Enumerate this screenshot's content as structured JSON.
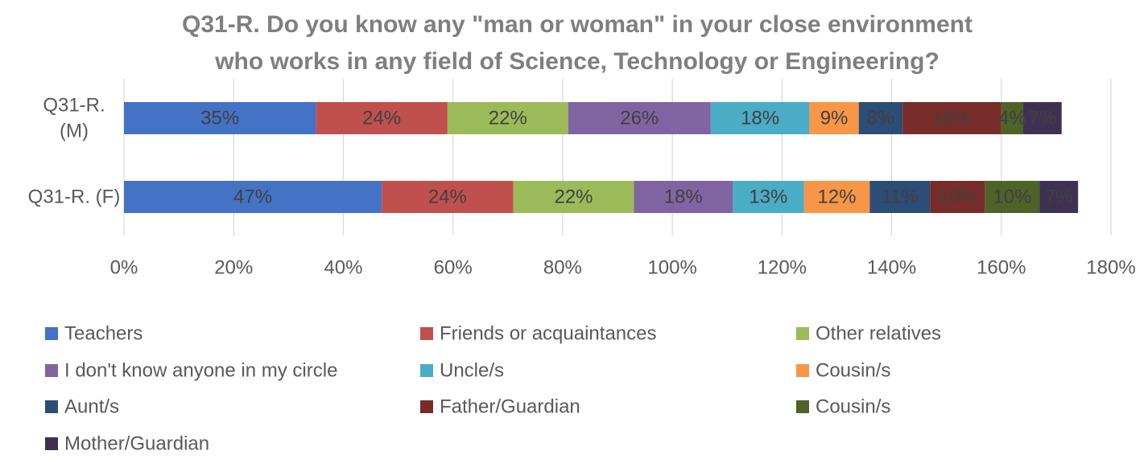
{
  "chart_data": {
    "type": "bar",
    "orientation": "horizontal",
    "stacked": true,
    "title": "Q31-R. Do you know any \"man or woman\" in your close environment who works in any field of Science, Technology or Engineering?",
    "title_lines": [
      "Q31-R. Do you know any \"man or woman\" in your close environment",
      "who works in any field of Science, Technology or Engineering?"
    ],
    "categories": [
      "Q31-R. (M)",
      "Q31-R. (F)"
    ],
    "category_label_lines": [
      [
        "Q31-R.",
        "(M)"
      ],
      [
        "Q31-R. (F)"
      ]
    ],
    "xlim": [
      0,
      180
    ],
    "x_ticks": [
      0,
      20,
      40,
      60,
      80,
      100,
      120,
      140,
      160,
      180
    ],
    "x_tick_labels": [
      "0%",
      "20%",
      "40%",
      "60%",
      "80%",
      "100%",
      "120%",
      "140%",
      "160%",
      "180%"
    ],
    "grid": "vertical",
    "legend_position": "bottom",
    "series": [
      {
        "name": "Teachers",
        "color": "#4472c4",
        "values": [
          35,
          47
        ],
        "labels": [
          "35%",
          "47%"
        ]
      },
      {
        "name": "Friends or acquaintances",
        "color": "#c0504d",
        "values": [
          24,
          24
        ],
        "labels": [
          "24%",
          "24%"
        ]
      },
      {
        "name": "Other relatives",
        "color": "#9bbb59",
        "values": [
          22,
          22
        ],
        "labels": [
          "22%",
          "22%"
        ]
      },
      {
        "name": "I don't know anyone in my circle",
        "color": "#8064a2",
        "values": [
          26,
          18
        ],
        "labels": [
          "26%",
          "18%"
        ]
      },
      {
        "name": "Uncle/s",
        "color": "#4bacc6",
        "values": [
          18,
          13
        ],
        "labels": [
          "18%",
          "13%"
        ]
      },
      {
        "name": "Cousin/s",
        "color": "#f79646",
        "values": [
          9,
          12
        ],
        "labels": [
          "9%",
          "12%"
        ]
      },
      {
        "name": "Aunt/s",
        "color": "#2c4d75",
        "values": [
          8,
          11
        ],
        "labels": [
          "8%",
          "11%"
        ]
      },
      {
        "name": "Father/Guardian",
        "color": "#772c2a",
        "values": [
          18,
          10
        ],
        "labels": [
          "18%",
          "10%"
        ]
      },
      {
        "name": "Cousin/s",
        "color": "#4f6228",
        "values": [
          4,
          10
        ],
        "labels": [
          "4%",
          "10%"
        ]
      },
      {
        "name": "Mother/Guardian",
        "color": "#3f3151",
        "values": [
          7,
          7
        ],
        "labels": [
          "7%",
          "7%"
        ]
      }
    ]
  }
}
